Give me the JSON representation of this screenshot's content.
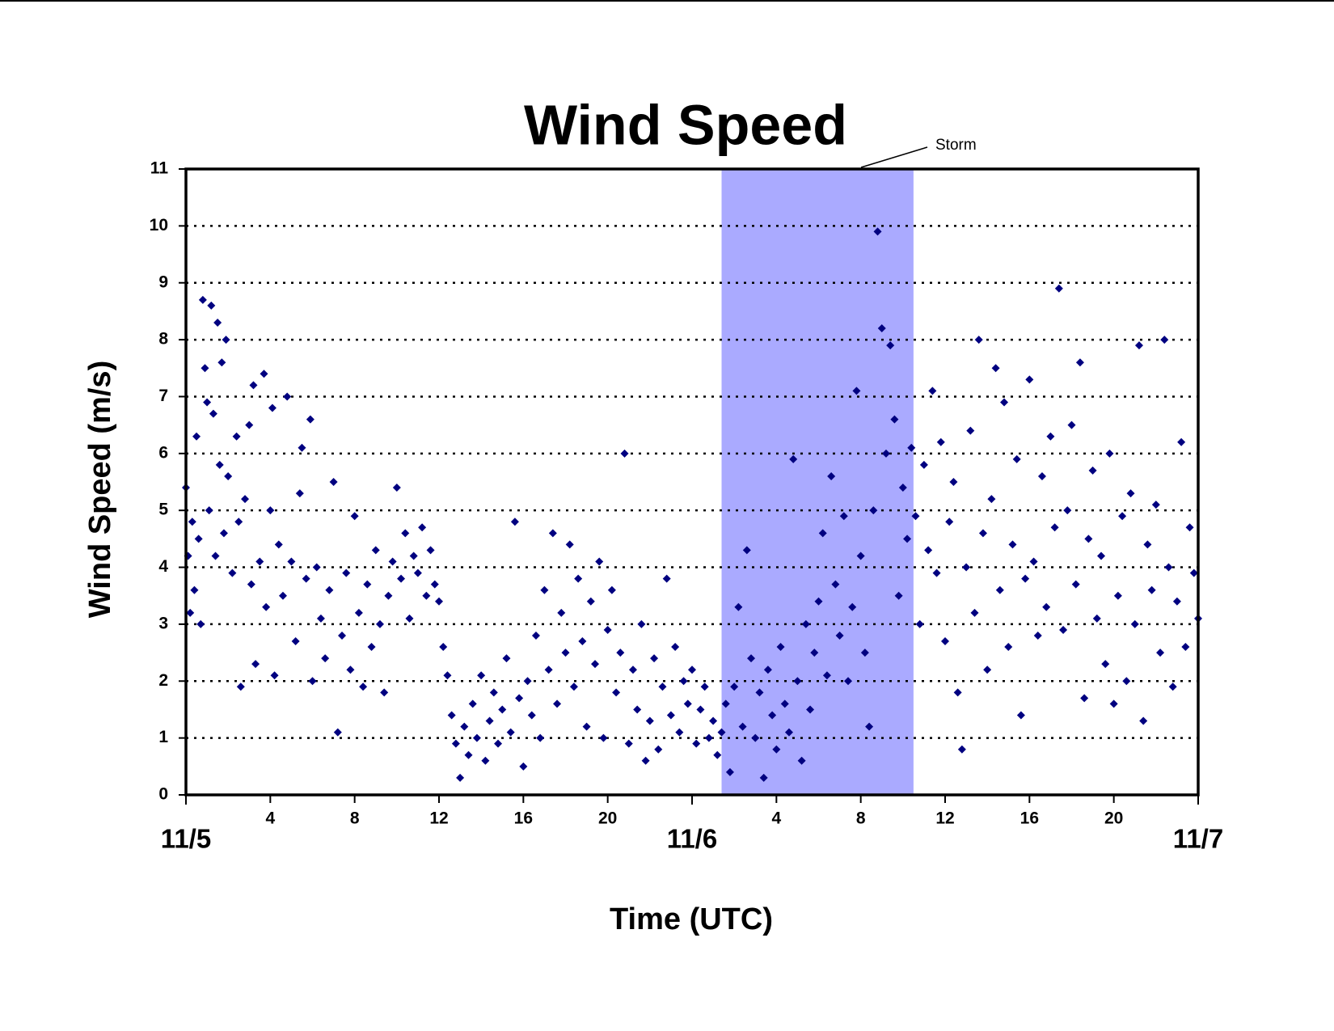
{
  "chart_data": {
    "type": "scatter",
    "title": "Wind Speed",
    "xlabel": "Time (UTC)",
    "ylabel": "Wind Speed (m/s)",
    "xlim": [
      0,
      48
    ],
    "ylim": [
      0,
      11
    ],
    "xticks": [
      4,
      8,
      12,
      16,
      20,
      {
        "value": 28,
        "label": "4"
      },
      {
        "value": 32,
        "label": "8"
      },
      {
        "value": 36,
        "label": "12"
      },
      {
        "value": 40,
        "label": "16"
      },
      {
        "value": 44,
        "label": "20"
      }
    ],
    "xday_ticks": [
      {
        "value": 0,
        "label": "11/5"
      },
      {
        "value": 24,
        "label": "11/6"
      },
      {
        "value": 48,
        "label": "11/7"
      }
    ],
    "yticks": [
      0,
      1,
      2,
      3,
      4,
      5,
      6,
      7,
      8,
      9,
      10,
      11
    ],
    "grid": true,
    "color": "#000080",
    "shaded_region": {
      "label": "Storm",
      "x": [
        25.4,
        34.5
      ],
      "color": "#aaaaff"
    },
    "x": [
      0.0,
      0.1,
      0.2,
      0.3,
      0.4,
      0.5,
      0.6,
      0.7,
      0.8,
      0.9,
      1.0,
      1.1,
      1.2,
      1.3,
      1.4,
      1.5,
      1.6,
      1.7,
      1.8,
      1.9,
      2.0,
      2.2,
      2.4,
      2.5,
      2.6,
      2.8,
      3.0,
      3.1,
      3.2,
      3.3,
      3.5,
      3.7,
      3.8,
      4.0,
      4.1,
      4.2,
      4.4,
      4.6,
      4.8,
      5.0,
      5.2,
      5.4,
      5.5,
      5.7,
      5.9,
      6.0,
      6.2,
      6.4,
      6.6,
      6.8,
      7.0,
      7.2,
      7.4,
      7.6,
      7.8,
      8.0,
      8.2,
      8.4,
      8.6,
      8.8,
      9.0,
      9.2,
      9.4,
      9.6,
      9.8,
      10.0,
      10.2,
      10.4,
      10.6,
      10.8,
      11.0,
      11.2,
      11.4,
      11.6,
      11.8,
      12.0,
      12.2,
      12.4,
      12.6,
      12.8,
      13.0,
      13.2,
      13.4,
      13.6,
      13.8,
      14.0,
      14.2,
      14.4,
      14.6,
      14.8,
      15.0,
      15.2,
      15.4,
      15.6,
      15.8,
      16.0,
      16.2,
      16.4,
      16.6,
      16.8,
      17.0,
      17.2,
      17.4,
      17.6,
      17.8,
      18.0,
      18.2,
      18.4,
      18.6,
      18.8,
      19.0,
      19.2,
      19.4,
      19.6,
      19.8,
      20.0,
      20.2,
      20.4,
      20.6,
      20.8,
      21.0,
      21.2,
      21.4,
      21.6,
      21.8,
      22.0,
      22.2,
      22.4,
      22.6,
      22.8,
      23.0,
      23.2,
      23.4,
      23.6,
      23.8,
      24.0,
      24.2,
      24.4,
      24.6,
      24.8,
      25.0,
      25.2,
      25.4,
      25.6,
      25.8,
      26.0,
      26.2,
      26.4,
      26.6,
      26.8,
      27.0,
      27.2,
      27.4,
      27.6,
      27.8,
      28.0,
      28.2,
      28.4,
      28.6,
      28.8,
      29.0,
      29.2,
      29.4,
      29.6,
      29.8,
      30.0,
      30.2,
      30.4,
      30.6,
      30.8,
      31.0,
      31.2,
      31.4,
      31.6,
      31.8,
      32.0,
      32.2,
      32.4,
      32.6,
      32.8,
      33.0,
      33.2,
      33.4,
      33.6,
      33.8,
      34.0,
      34.2,
      34.4,
      34.6,
      34.8,
      35.0,
      35.2,
      35.4,
      35.6,
      35.8,
      36.0,
      36.2,
      36.4,
      36.6,
      36.8,
      37.0,
      37.2,
      37.4,
      37.6,
      37.8,
      38.0,
      38.2,
      38.4,
      38.6,
      38.8,
      39.0,
      39.2,
      39.4,
      39.6,
      39.8,
      40.0,
      40.2,
      40.4,
      40.6,
      40.8,
      41.0,
      41.2,
      41.4,
      41.6,
      41.8,
      42.0,
      42.2,
      42.4,
      42.6,
      42.8,
      43.0,
      43.2,
      43.4,
      43.6,
      43.8,
      44.0,
      44.2,
      44.4,
      44.6,
      44.8,
      45.0,
      45.2,
      45.4,
      45.6,
      45.8,
      46.0,
      46.2,
      46.4,
      46.6,
      46.8,
      47.0,
      47.2,
      47.4,
      47.6,
      47.8,
      48.0
    ],
    "values": [
      5.4,
      4.2,
      3.2,
      4.8,
      3.6,
      6.3,
      4.5,
      3.0,
      8.7,
      7.5,
      6.9,
      5.0,
      8.6,
      6.7,
      4.2,
      8.3,
      5.8,
      7.6,
      4.6,
      8.0,
      5.6,
      3.9,
      6.3,
      4.8,
      1.9,
      5.2,
      6.5,
      3.7,
      7.2,
      2.3,
      4.1,
      7.4,
      3.3,
      5.0,
      6.8,
      2.1,
      4.4,
      3.5,
      7.0,
      4.1,
      2.7,
      5.3,
      6.1,
      3.8,
      6.6,
      2.0,
      4.0,
      3.1,
      2.4,
      3.6,
      5.5,
      1.1,
      2.8,
      3.9,
      2.2,
      4.9,
      3.2,
      1.9,
      3.7,
      2.6,
      4.3,
      3.0,
      1.8,
      3.5,
      4.1,
      5.4,
      3.8,
      4.6,
      3.1,
      4.2,
      3.9,
      4.7,
      3.5,
      4.3,
      3.7,
      3.4,
      2.6,
      2.1,
      1.4,
      0.9,
      0.3,
      1.2,
      0.7,
      1.6,
      1.0,
      2.1,
      0.6,
      1.3,
      1.8,
      0.9,
      1.5,
      2.4,
      1.1,
      4.8,
      1.7,
      0.5,
      2.0,
      1.4,
      2.8,
      1.0,
      3.6,
      2.2,
      4.6,
      1.6,
      3.2,
      2.5,
      4.4,
      1.9,
      3.8,
      2.7,
      1.2,
      3.4,
      2.3,
      4.1,
      1.0,
      2.9,
      3.6,
      1.8,
      2.5,
      6.0,
      0.9,
      2.2,
      1.5,
      3.0,
      0.6,
      1.3,
      2.4,
      0.8,
      1.9,
      3.8,
      1.4,
      2.6,
      1.1,
      2.0,
      1.6,
      2.2,
      0.9,
      1.5,
      1.9,
      1.0,
      1.3,
      0.7,
      1.1,
      1.6,
      0.4,
      1.9,
      3.3,
      1.2,
      4.3,
      2.4,
      1.0,
      1.8,
      0.3,
      2.2,
      1.4,
      0.8,
      2.6,
      1.6,
      1.1,
      5.9,
      2.0,
      0.6,
      3.0,
      1.5,
      2.5,
      3.4,
      4.6,
      2.1,
      5.6,
      3.7,
      2.8,
      4.9,
      2.0,
      3.3,
      7.1,
      4.2,
      2.5,
      1.2,
      5.0,
      9.9,
      8.2,
      6.0,
      7.9,
      6.6,
      3.5,
      5.4,
      4.5,
      6.1,
      4.9,
      3.0,
      5.8,
      4.3,
      7.1,
      3.9,
      6.2,
      2.7,
      4.8,
      5.5,
      1.8,
      0.8,
      4.0,
      6.4,
      3.2,
      8.0,
      4.6,
      2.2,
      5.2,
      7.5,
      3.6,
      6.9,
      2.6,
      4.4,
      5.9,
      1.4,
      3.8,
      7.3,
      4.1,
      2.8,
      5.6,
      3.3,
      6.3,
      4.7,
      8.9,
      2.9,
      5.0,
      6.5,
      3.7,
      7.6,
      1.7,
      4.5,
      5.7,
      3.1,
      4.2,
      2.3,
      6.0,
      1.6,
      3.5,
      4.9,
      2.0,
      5.3,
      3.0,
      7.9,
      1.3,
      4.4,
      3.6,
      5.1,
      2.5,
      8.0,
      4.0,
      1.9,
      3.4,
      6.2,
      2.6,
      4.7,
      3.9,
      3.1
    ]
  }
}
